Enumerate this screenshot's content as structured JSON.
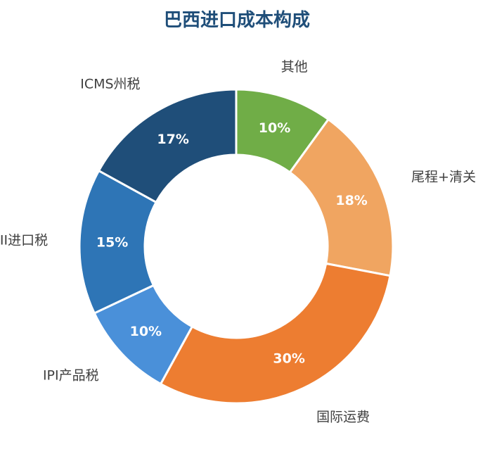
{
  "chart_data": {
    "type": "pie",
    "variant": "donut",
    "title": "巴西进口成本构成",
    "categories": [
      "其他",
      "尾程+清关",
      "国际运费",
      "IPI产品税",
      "II进口税",
      "ICMS州税"
    ],
    "values": [
      10,
      18,
      30,
      10,
      15,
      17
    ],
    "value_labels": [
      "10%",
      "18%",
      "30%",
      "10%",
      "15%",
      "17%"
    ],
    "colors": [
      "#70AD47",
      "#F0A561",
      "#ED7D31",
      "#4A90D9",
      "#2E75B6",
      "#1F4E79"
    ],
    "title_color": "#1F4E79",
    "legend": "none",
    "labels_position": "outside"
  }
}
